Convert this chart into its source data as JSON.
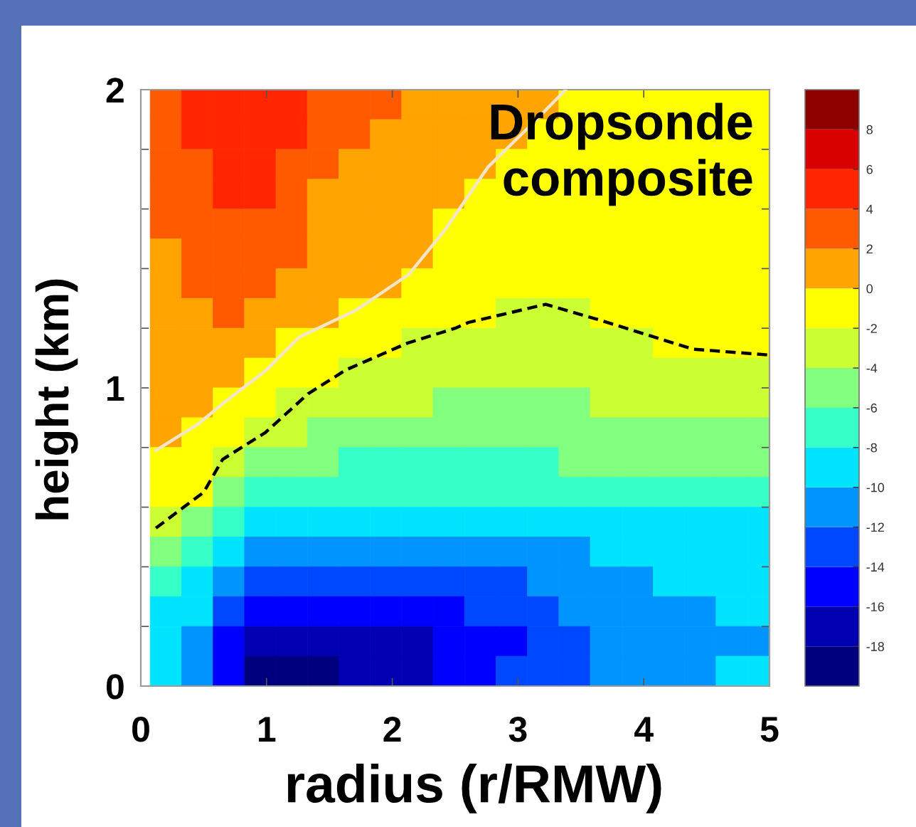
{
  "chart_data": {
    "type": "heatmap",
    "xlabel": "radius (r/RMW)",
    "ylabel": "height (km)",
    "annotations": [
      "Dropsonde\ncomposite"
    ],
    "x": [
      0.2,
      0.45,
      0.7,
      0.95,
      1.2,
      1.45,
      1.7,
      1.95,
      2.2,
      2.45,
      2.7,
      2.95,
      3.2,
      3.45,
      3.7,
      3.95,
      4.2,
      4.45,
      4.7,
      4.95
    ],
    "cells": [
      [
        3,
        5,
        5,
        5,
        5,
        3,
        3,
        3,
        1,
        1,
        1,
        1,
        1,
        -1,
        -1,
        -1,
        -1,
        -1,
        -1,
        -1
      ],
      [
        3,
        5,
        5,
        5,
        5,
        3,
        3,
        1,
        1,
        1,
        1,
        1,
        -1,
        -1,
        -1,
        -1,
        -1,
        -1,
        -1,
        -1
      ],
      [
        3,
        3,
        5,
        5,
        3,
        3,
        1,
        1,
        1,
        1,
        1,
        -1,
        -1,
        -1,
        -1,
        -1,
        -1,
        -1,
        -1,
        -1
      ],
      [
        3,
        3,
        5,
        5,
        3,
        1,
        1,
        1,
        1,
        1,
        -1,
        -1,
        -1,
        -1,
        -1,
        -1,
        -1,
        -1,
        -1,
        -1
      ],
      [
        3,
        3,
        3,
        3,
        3,
        1,
        1,
        1,
        1,
        -1,
        -1,
        -1,
        -1,
        -1,
        -1,
        -1,
        -1,
        -1,
        -1,
        -1
      ],
      [
        1,
        3,
        3,
        3,
        3,
        1,
        1,
        1,
        1,
        -1,
        -1,
        -1,
        -1,
        -1,
        -1,
        -1,
        -1,
        -1,
        -1,
        -1
      ],
      [
        1,
        3,
        3,
        3,
        1,
        1,
        1,
        1,
        -1,
        -1,
        -1,
        -1,
        -1,
        -1,
        -1,
        -1,
        -1,
        -1,
        -1,
        -1
      ],
      [
        1,
        1,
        3,
        1,
        1,
        1,
        -1,
        -1,
        -1,
        -1,
        -1,
        -3,
        -3,
        -3,
        -1,
        -1,
        -1,
        -1,
        -1,
        -1
      ],
      [
        1,
        1,
        1,
        1,
        -1,
        -1,
        -1,
        -1,
        -3,
        -3,
        -3,
        -3,
        -3,
        -3,
        -3,
        -3,
        -1,
        -1,
        -1,
        -1
      ],
      [
        1,
        1,
        1,
        -1,
        -1,
        -1,
        -3,
        -3,
        -3,
        -3,
        -3,
        -3,
        -3,
        -3,
        -3,
        -3,
        -3,
        -3,
        -3,
        -3
      ],
      [
        1,
        1,
        -1,
        -1,
        -3,
        -3,
        -3,
        -3,
        -3,
        -5,
        -5,
        -5,
        -5,
        -5,
        -3,
        -3,
        -3,
        -3,
        -3,
        -3
      ],
      [
        1,
        -1,
        -1,
        -3,
        -3,
        -5,
        -5,
        -5,
        -5,
        -5,
        -5,
        -5,
        -5,
        -5,
        -5,
        -5,
        -5,
        -5,
        -5,
        -5
      ],
      [
        -1,
        -1,
        -3,
        -5,
        -5,
        -5,
        -7,
        -7,
        -7,
        -7,
        -7,
        -7,
        -7,
        -5,
        -5,
        -5,
        -5,
        -5,
        -5,
        -5
      ],
      [
        -1,
        -1,
        -5,
        -7,
        -7,
        -7,
        -7,
        -7,
        -7,
        -7,
        -7,
        -7,
        -7,
        -7,
        -7,
        -7,
        -7,
        -7,
        -7,
        -7
      ],
      [
        -3,
        -5,
        -7,
        -9,
        -9,
        -9,
        -9,
        -9,
        -9,
        -9,
        -9,
        -9,
        -9,
        -9,
        -9,
        -9,
        -9,
        -9,
        -9,
        -9
      ],
      [
        -5,
        -7,
        -9,
        -11,
        -11,
        -11,
        -11,
        -11,
        -11,
        -11,
        -11,
        -11,
        -11,
        -11,
        -9,
        -9,
        -9,
        -9,
        -9,
        -9
      ],
      [
        -7,
        -9,
        -11,
        -13,
        -13,
        -13,
        -13,
        -13,
        -13,
        -13,
        -13,
        -13,
        -11,
        -11,
        -11,
        -11,
        -9,
        -9,
        -9,
        -9
      ],
      [
        -9,
        -9,
        -13,
        -15,
        -15,
        -15,
        -15,
        -15,
        -15,
        -15,
        -13,
        -13,
        -13,
        -11,
        -11,
        -11,
        -11,
        -11,
        -9,
        -9
      ],
      [
        -9,
        -11,
        -15,
        -17,
        -17,
        -17,
        -17,
        -17,
        -17,
        -15,
        -15,
        -15,
        -13,
        -13,
        -11,
        -11,
        -11,
        -11,
        -11,
        -11
      ],
      [
        -9,
        -11,
        -15,
        -19,
        -19,
        -19,
        -17,
        -17,
        -17,
        -15,
        -15,
        -13,
        -13,
        -13,
        -11,
        -11,
        -11,
        -11,
        -9,
        -9
      ]
    ],
    "clim": [
      -20,
      10
    ],
    "cticks": [
      -18,
      -16,
      -14,
      -12,
      -10,
      -8,
      -6,
      -4,
      -2,
      0,
      2,
      4,
      6,
      8
    ],
    "colors": [
      "#00007f",
      "#0000b0",
      "#0000ff",
      "#0048ff",
      "#0094ff",
      "#00e4ff",
      "#36ffc8",
      "#82ff7e",
      "#ccff33",
      "#ffff00",
      "#ffa400",
      "#ff5a00",
      "#ff2600",
      "#d90000",
      "#8e0000"
    ],
    "xlim": [
      0,
      5
    ],
    "ylim": [
      0,
      2
    ],
    "xticks": [
      0,
      1,
      2,
      3,
      4,
      5
    ],
    "yticks": [
      0,
      {
        "value": 0.2,
        "label": null
      },
      {
        "value": 0.4,
        "label": null
      },
      {
        "value": 0.6,
        "label": null
      },
      {
        "value": 0.8,
        "label": null
      },
      1,
      {
        "value": 1.2,
        "label": null
      },
      {
        "value": 1.4,
        "label": null
      },
      {
        "value": 1.6,
        "label": null
      },
      {
        "value": 1.8,
        "label": null
      },
      2
    ],
    "series": [
      {
        "type": "line",
        "color": "#f3e6c6",
        "line_style": "solid",
        "x": [
          0.12,
          0.46,
          0.66,
          1.0,
          1.26,
          1.71,
          2.13,
          2.42,
          2.76,
          3.1,
          3.38
        ],
        "values": [
          0.79,
          0.88,
          0.95,
          1.06,
          1.17,
          1.26,
          1.38,
          1.53,
          1.74,
          1.88,
          2.0
        ]
      },
      {
        "type": "line",
        "color": "#000000",
        "line_style": "dashed",
        "x": [
          0.12,
          0.5,
          0.65,
          0.99,
          1.33,
          1.63,
          2.12,
          2.5,
          2.61,
          3.22,
          3.63,
          4.39,
          5.0
        ],
        "values": [
          0.53,
          0.65,
          0.76,
          0.85,
          0.98,
          1.06,
          1.15,
          1.2,
          1.22,
          1.28,
          1.23,
          1.13,
          1.11
        ]
      }
    ]
  }
}
